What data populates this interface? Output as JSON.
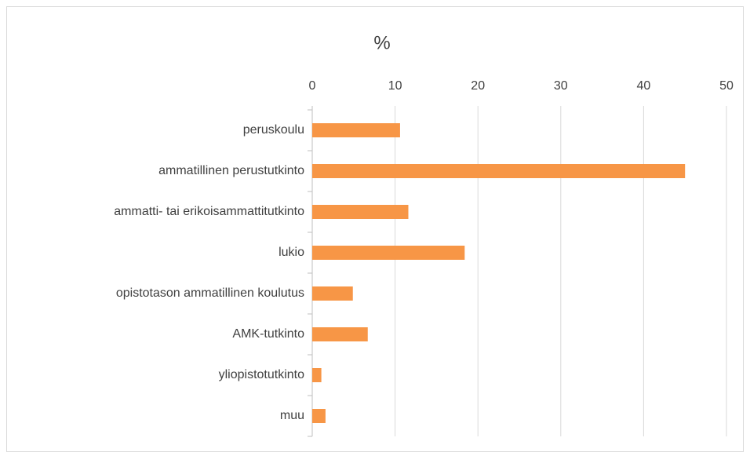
{
  "chart_data": {
    "type": "bar",
    "orientation": "horizontal",
    "title": "%",
    "categories": [
      "peruskoulu",
      "ammatillinen perustutkinto",
      "ammatti- tai erikoisammattitutkinto",
      "lukio",
      "opistotason ammatillinen koulutus",
      "AMK-tutkinto",
      "yliopistotutkinto",
      "muu"
    ],
    "values": [
      10.6,
      45.0,
      11.6,
      18.4,
      4.9,
      6.7,
      1.1,
      1.6
    ],
    "color": "#f79646",
    "xlim": [
      0,
      50
    ],
    "xticks": [
      0,
      10,
      20,
      30,
      40,
      50
    ],
    "grid": true
  }
}
